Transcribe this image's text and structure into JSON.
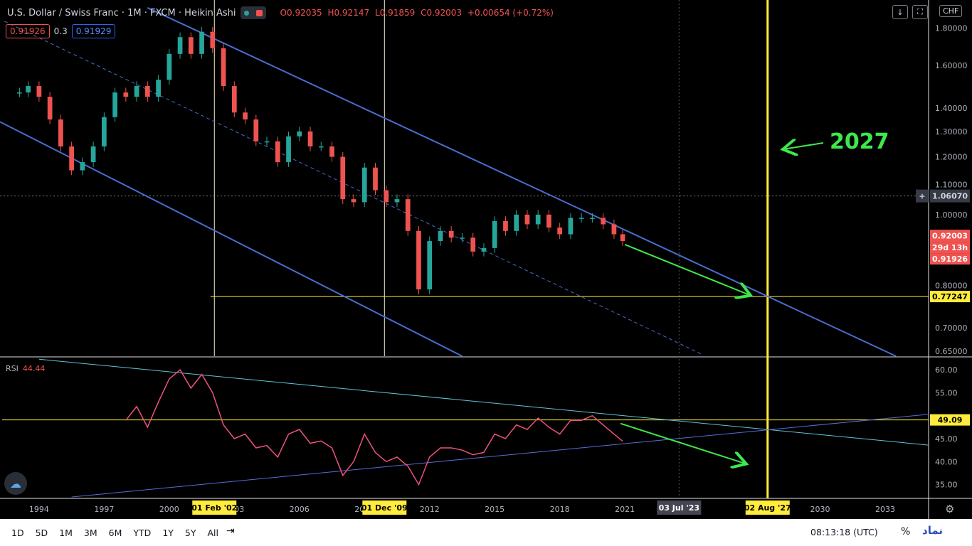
{
  "header": {
    "symbol": "U.S. Dollar / Swiss Franc · 1M · FXCM · Heikin Ashi",
    "ohlc": [
      "O0.92035",
      "H0.92147",
      "L0.91859",
      "C0.92003",
      "+0.00654 (+0.72%)"
    ]
  },
  "quote": {
    "bid": "0.91926",
    "spread": "0.3",
    "ask": "0.91929"
  },
  "top_buttons": {
    "currency": "CHF"
  },
  "rsi": {
    "label": "RSI",
    "value": "44.44"
  },
  "annotation": {
    "text": "2027"
  },
  "toolbar": {
    "timeframes": [
      "1D",
      "5D",
      "1M",
      "3M",
      "6M",
      "YTD",
      "1Y",
      "5Y",
      "All"
    ],
    "clock": "08:13:18 (UTC)",
    "percent": "%",
    "logo": "نماد"
  },
  "colors": {
    "up": "#26a69a",
    "down": "#ef5350",
    "channel": "#4a6cd0",
    "marker": "#ffeb3b",
    "annotation": "#3ee84a",
    "rsi_line": "#f0527a"
  },
  "chart_data": [
    {
      "type": "candlestick",
      "title": "U.S. Dollar / Swiss Franc · 1M · FXCM · Heikin Ashi",
      "x_ticks": [
        "1994",
        "1997",
        "2000",
        "2003",
        "2006",
        "2009",
        "2012",
        "2015",
        "2018",
        "2021",
        "2024",
        "2027",
        "2030",
        "2033"
      ],
      "x_highlight_labels": [
        "01 Feb '02",
        "01 Dec '09",
        "03 Jul '23",
        "02 Aug '27"
      ],
      "y_scale": "log",
      "y_ticks": [
        "1.80000",
        "1.60000",
        "1.40000",
        "1.30000",
        "1.20000",
        "1.10000",
        "1.00000",
        "0.90000",
        "0.80000",
        "0.70000",
        "0.65000"
      ],
      "y_range": [
        0.64,
        1.95
      ],
      "price_labels": {
        "crosshair": "1.06070",
        "last": "0.92003",
        "countdown": "29d 13h",
        "bid": "0.91926",
        "hline": "0.77247"
      },
      "xlim": [
        1992.2,
        2035.0
      ],
      "series": [
        {
          "x": 1993.1,
          "y": 1.47
        },
        {
          "x": 1993.5,
          "y": 1.5
        },
        {
          "x": 1994.0,
          "y": 1.45
        },
        {
          "x": 1994.5,
          "y": 1.35
        },
        {
          "x": 1995.0,
          "y": 1.24
        },
        {
          "x": 1995.5,
          "y": 1.15
        },
        {
          "x": 1996.0,
          "y": 1.18
        },
        {
          "x": 1996.5,
          "y": 1.24
        },
        {
          "x": 1997.0,
          "y": 1.36
        },
        {
          "x": 1997.5,
          "y": 1.47
        },
        {
          "x": 1998.0,
          "y": 1.45
        },
        {
          "x": 1998.5,
          "y": 1.5
        },
        {
          "x": 1999.0,
          "y": 1.45
        },
        {
          "x": 1999.5,
          "y": 1.53
        },
        {
          "x": 2000.0,
          "y": 1.66
        },
        {
          "x": 2000.5,
          "y": 1.75
        },
        {
          "x": 2001.0,
          "y": 1.66
        },
        {
          "x": 2001.5,
          "y": 1.78
        },
        {
          "x": 2002.0,
          "y": 1.69
        },
        {
          "x": 2002.5,
          "y": 1.5
        },
        {
          "x": 2003.0,
          "y": 1.38
        },
        {
          "x": 2003.5,
          "y": 1.35
        },
        {
          "x": 2004.0,
          "y": 1.26
        },
        {
          "x": 2004.5,
          "y": 1.26
        },
        {
          "x": 2005.0,
          "y": 1.18
        },
        {
          "x": 2005.5,
          "y": 1.28
        },
        {
          "x": 2006.0,
          "y": 1.3
        },
        {
          "x": 2006.5,
          "y": 1.24
        },
        {
          "x": 2007.0,
          "y": 1.24
        },
        {
          "x": 2007.5,
          "y": 1.2
        },
        {
          "x": 2008.0,
          "y": 1.05
        },
        {
          "x": 2008.5,
          "y": 1.04
        },
        {
          "x": 2009.0,
          "y": 1.16
        },
        {
          "x": 2009.5,
          "y": 1.08
        },
        {
          "x": 2010.0,
          "y": 1.04
        },
        {
          "x": 2010.5,
          "y": 1.05
        },
        {
          "x": 2011.0,
          "y": 0.95
        },
        {
          "x": 2011.5,
          "y": 0.79
        },
        {
          "x": 2012.0,
          "y": 0.92
        },
        {
          "x": 2012.5,
          "y": 0.95
        },
        {
          "x": 2013.0,
          "y": 0.93
        },
        {
          "x": 2013.5,
          "y": 0.93
        },
        {
          "x": 2014.0,
          "y": 0.89
        },
        {
          "x": 2014.5,
          "y": 0.9
        },
        {
          "x": 2015.0,
          "y": 0.98
        },
        {
          "x": 2015.5,
          "y": 0.95
        },
        {
          "x": 2016.0,
          "y": 1.0
        },
        {
          "x": 2016.5,
          "y": 0.97
        },
        {
          "x": 2017.0,
          "y": 1.0
        },
        {
          "x": 2017.5,
          "y": 0.96
        },
        {
          "x": 2018.0,
          "y": 0.94
        },
        {
          "x": 2018.5,
          "y": 0.99
        },
        {
          "x": 2019.0,
          "y": 0.99
        },
        {
          "x": 2019.5,
          "y": 0.99
        },
        {
          "x": 2020.0,
          "y": 0.97
        },
        {
          "x": 2020.5,
          "y": 0.94
        },
        {
          "x": 2020.9,
          "y": 0.92
        }
      ]
    },
    {
      "type": "line",
      "title": "RSI",
      "y_ticks": [
        "60.00",
        "55.00",
        "49.09",
        "45.00",
        "40.00",
        "35.00"
      ],
      "y_range": [
        32.0,
        62.5
      ],
      "hline": 49.09,
      "xlim": [
        1992.2,
        2035.0
      ],
      "series": [
        {
          "x": 1998.0,
          "y": 49.0
        },
        {
          "x": 1998.5,
          "y": 52.0
        },
        {
          "x": 1999.0,
          "y": 47.5
        },
        {
          "x": 1999.5,
          "y": 53.0
        },
        {
          "x": 2000.0,
          "y": 58.0
        },
        {
          "x": 2000.5,
          "y": 60.0
        },
        {
          "x": 2001.0,
          "y": 56.0
        },
        {
          "x": 2001.5,
          "y": 59.0
        },
        {
          "x": 2002.0,
          "y": 55.0
        },
        {
          "x": 2002.5,
          "y": 48.0
        },
        {
          "x": 2003.0,
          "y": 45.0
        },
        {
          "x": 2003.5,
          "y": 46.0
        },
        {
          "x": 2004.0,
          "y": 43.0
        },
        {
          "x": 2004.5,
          "y": 43.5
        },
        {
          "x": 2005.0,
          "y": 41.0
        },
        {
          "x": 2005.5,
          "y": 46.0
        },
        {
          "x": 2006.0,
          "y": 47.0
        },
        {
          "x": 2006.5,
          "y": 44.0
        },
        {
          "x": 2007.0,
          "y": 44.5
        },
        {
          "x": 2007.5,
          "y": 43.0
        },
        {
          "x": 2008.0,
          "y": 37.0
        },
        {
          "x": 2008.5,
          "y": 40.0
        },
        {
          "x": 2009.0,
          "y": 46.0
        },
        {
          "x": 2009.5,
          "y": 42.0
        },
        {
          "x": 2010.0,
          "y": 40.0
        },
        {
          "x": 2010.5,
          "y": 41.0
        },
        {
          "x": 2011.0,
          "y": 39.0
        },
        {
          "x": 2011.5,
          "y": 35.0
        },
        {
          "x": 2012.0,
          "y": 41.0
        },
        {
          "x": 2012.5,
          "y": 43.0
        },
        {
          "x": 2013.0,
          "y": 43.0
        },
        {
          "x": 2013.5,
          "y": 42.5
        },
        {
          "x": 2014.0,
          "y": 41.5
        },
        {
          "x": 2014.5,
          "y": 42.0
        },
        {
          "x": 2015.0,
          "y": 46.0
        },
        {
          "x": 2015.5,
          "y": 45.0
        },
        {
          "x": 2016.0,
          "y": 48.0
        },
        {
          "x": 2016.5,
          "y": 47.0
        },
        {
          "x": 2017.0,
          "y": 49.5
        },
        {
          "x": 2017.5,
          "y": 47.5
        },
        {
          "x": 2018.0,
          "y": 46.0
        },
        {
          "x": 2018.5,
          "y": 49.0
        },
        {
          "x": 2019.0,
          "y": 49.0
        },
        {
          "x": 2019.5,
          "y": 50.0
        },
        {
          "x": 2020.0,
          "y": 48.0
        },
        {
          "x": 2020.5,
          "y": 46.0
        },
        {
          "x": 2020.9,
          "y": 44.44
        }
      ]
    }
  ]
}
